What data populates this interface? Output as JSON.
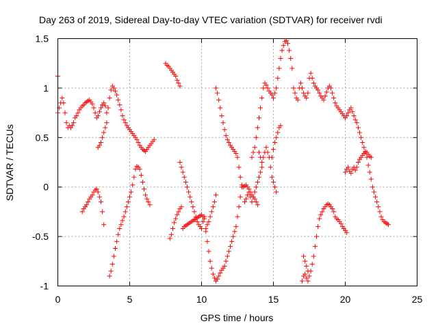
{
  "chart_data": {
    "type": "scatter",
    "title": "Day 263 of 2019, Sidereal Day-to-day VTEC variation (SDTVAR) for receiver rvdi",
    "xlabel": "GPS time / hours",
    "ylabel": "SDTVAR / TECUs",
    "xlim": [
      0,
      25
    ],
    "ylim": [
      -1,
      1.5
    ],
    "x_ticks": [
      0,
      5,
      10,
      15,
      20,
      25
    ],
    "x_tick_labels": [
      "0",
      "5",
      "10",
      "15",
      "20",
      "25"
    ],
    "y_ticks": [
      -1,
      -0.5,
      0,
      0.5,
      1,
      1.5
    ],
    "y_tick_labels": [
      "-1",
      "-0.5",
      "0",
      "0.5",
      "1",
      "1.5"
    ],
    "grid": true,
    "marker": "+",
    "color": "#ff0000",
    "series": [
      {
        "name": "s1",
        "x": [
          0.0,
          0.1,
          0.2,
          0.3,
          0.4,
          0.5,
          0.6,
          0.7,
          0.8,
          0.9,
          1.0,
          1.1,
          1.2,
          1.3,
          1.4,
          1.5,
          1.6,
          1.7,
          1.8,
          1.9,
          2.0,
          2.1,
          2.2,
          2.3,
          2.4,
          2.5,
          2.6,
          2.7,
          2.8,
          2.9,
          3.0,
          3.1,
          3.2,
          3.3,
          3.4,
          3.5,
          3.6,
          3.7,
          3.8,
          3.9,
          4.0,
          4.1,
          4.2,
          4.3,
          4.4,
          4.5,
          4.6,
          4.7,
          4.8,
          4.9,
          5.0,
          5.1,
          5.2,
          5.3,
          5.4,
          5.5,
          5.6,
          5.7,
          5.8,
          5.9,
          6.0,
          6.1,
          6.2,
          6.3,
          6.4,
          6.5,
          6.6,
          6.7
        ],
        "y": [
          0.75,
          0.8,
          0.85,
          0.9,
          0.85,
          0.75,
          0.65,
          0.6,
          0.62,
          0.6,
          0.62,
          0.65,
          0.7,
          0.72,
          0.75,
          0.78,
          0.8,
          0.82,
          0.83,
          0.85,
          0.86,
          0.87,
          0.88,
          0.86,
          0.84,
          0.8,
          0.75,
          0.7,
          0.72,
          0.76,
          0.8,
          0.83,
          0.85,
          0.82,
          0.75,
          0.8,
          0.9,
          0.98,
          1.02,
          1.0,
          0.97,
          0.93,
          0.88,
          0.83,
          0.78,
          0.72,
          0.68,
          0.65,
          0.62,
          0.6,
          0.58,
          0.56,
          0.54,
          0.52,
          0.5,
          0.48,
          0.45,
          0.42,
          0.4,
          0.38,
          0.37,
          0.36,
          0.38,
          0.4,
          0.42,
          0.44,
          0.46,
          0.48
        ]
      },
      {
        "name": "s2",
        "x": [
          2.8,
          2.9,
          3.0,
          3.1,
          3.2,
          3.3,
          3.4
        ],
        "y": [
          0.4,
          0.42,
          0.45,
          0.5,
          0.55,
          0.6,
          0.65
        ]
      },
      {
        "name": "s3",
        "x": [
          1.7,
          1.8,
          1.9,
          2.0,
          2.1,
          2.2,
          2.3,
          2.4,
          2.5,
          2.6,
          2.7,
          2.8,
          2.9,
          3.0,
          3.1,
          3.2
        ],
        "y": [
          -0.25,
          -0.22,
          -0.2,
          -0.18,
          -0.15,
          -0.12,
          -0.1,
          -0.08,
          -0.05,
          -0.03,
          -0.02,
          -0.05,
          -0.1,
          -0.15,
          -0.25,
          -0.38
        ]
      },
      {
        "name": "s4",
        "x": [
          3.6,
          3.7,
          3.8,
          3.9,
          4.0,
          4.1,
          4.2,
          4.3,
          4.4,
          4.5,
          4.6,
          4.7,
          4.8,
          4.9,
          5.0,
          5.1,
          5.2,
          5.3,
          5.4,
          5.5,
          5.6,
          5.7,
          5.8,
          5.9,
          6.0,
          6.1,
          6.2,
          6.3,
          6.4
        ],
        "y": [
          -0.9,
          -0.85,
          -0.78,
          -0.7,
          -0.62,
          -0.55,
          -0.48,
          -0.42,
          -0.38,
          -0.34,
          -0.3,
          -0.25,
          -0.2,
          -0.15,
          -0.1,
          -0.05,
          0.02,
          0.1,
          0.18,
          0.21,
          0.2,
          0.18,
          0.12,
          0.05,
          -0.02,
          -0.08,
          -0.12,
          -0.15,
          -0.18
        ]
      },
      {
        "name": "s5",
        "x": [
          7.5,
          7.6,
          7.7,
          7.8,
          7.9,
          8.0,
          8.1,
          8.2,
          8.3,
          8.4,
          8.5
        ],
        "y": [
          1.25,
          1.23,
          1.22,
          1.2,
          1.18,
          1.16,
          1.14,
          1.12,
          1.08,
          1.05,
          1.02
        ]
      },
      {
        "name": "s6",
        "x": [
          7.8,
          7.9,
          8.0,
          8.1,
          8.2,
          8.3,
          8.4,
          8.5,
          8.6
        ],
        "y": [
          -0.52,
          -0.48,
          -0.42,
          -0.36,
          -0.32,
          -0.28,
          -0.25,
          -0.22,
          -0.2
        ]
      },
      {
        "name": "s7",
        "x": [
          8.5,
          8.6,
          8.7,
          8.8,
          8.9,
          9.0,
          9.1,
          9.2,
          9.3,
          9.4,
          9.5,
          9.6,
          9.7,
          9.8,
          9.9,
          10.0,
          10.1,
          10.2,
          10.3,
          10.4,
          10.5,
          10.6,
          10.7,
          10.8,
          10.9,
          11.0,
          11.1,
          11.2,
          11.3,
          11.4,
          11.5,
          11.6,
          11.7,
          11.8,
          11.9,
          12.0,
          12.1,
          12.2,
          12.3,
          12.4,
          12.5,
          12.6,
          12.7,
          12.8
        ],
        "y": [
          0.25,
          0.2,
          0.15,
          0.1,
          0.05,
          0.0,
          -0.05,
          -0.1,
          -0.15,
          -0.2,
          -0.25,
          -0.3,
          -0.35,
          -0.38,
          -0.4,
          -0.42,
          -0.35,
          -0.3,
          -0.45,
          -0.55,
          -0.65,
          -0.75,
          -0.82,
          -0.88,
          -0.92,
          -0.95,
          -0.93,
          -0.9,
          -0.87,
          -0.84,
          -0.82,
          -0.8,
          -0.75,
          -0.7,
          -0.65,
          -0.6,
          -0.55,
          -0.5,
          -0.45,
          -0.4,
          -0.3,
          -0.2,
          -0.1,
          0.0
        ]
      },
      {
        "name": "s8",
        "x": [
          8.7,
          8.8,
          8.9,
          9.0,
          9.1,
          9.2,
          9.3,
          9.4,
          9.5,
          9.6,
          9.7,
          9.8,
          9.9,
          10.0,
          10.1,
          10.2
        ],
        "y": [
          -0.42,
          -0.4,
          -0.39,
          -0.38,
          -0.37,
          -0.36,
          -0.35,
          -0.34,
          -0.33,
          -0.32,
          -0.31,
          -0.3,
          -0.29,
          -0.28,
          -0.3,
          -0.32
        ]
      },
      {
        "name": "s9",
        "x": [
          10.3,
          10.4,
          10.5,
          10.6,
          10.7,
          10.8,
          10.9,
          11.0
        ],
        "y": [
          -0.42,
          -0.38,
          -0.35,
          -0.3,
          -0.25,
          -0.2,
          -0.15,
          -0.08
        ]
      },
      {
        "name": "s10",
        "x": [
          11.0,
          11.1,
          11.2,
          11.3,
          11.4,
          11.5,
          11.6,
          11.7,
          11.8,
          11.9,
          12.0,
          12.1,
          12.2,
          12.3,
          12.4,
          12.5,
          12.6,
          12.7,
          12.8,
          12.9,
          13.0,
          13.1,
          13.2,
          13.3,
          13.4,
          13.5,
          13.6,
          13.7,
          13.8,
          13.9
        ],
        "y": [
          1.0,
          0.95,
          0.88,
          0.8,
          0.72,
          0.65,
          0.58,
          0.52,
          0.48,
          0.45,
          0.42,
          0.4,
          0.38,
          0.36,
          0.34,
          0.3,
          0.2,
          0.1,
          0.02,
          0.0,
          0.01,
          0.02,
          0.0,
          -0.02,
          -0.05,
          -0.08,
          -0.1,
          -0.12,
          -0.15,
          -0.18
        ]
      },
      {
        "name": "s11",
        "x": [
          13.5,
          13.6,
          13.7,
          13.8,
          13.9,
          14.0,
          14.1,
          14.2,
          14.3,
          14.4,
          14.5,
          14.6,
          14.7,
          14.8,
          14.9,
          15.0,
          15.1,
          15.2,
          15.3,
          15.4,
          15.5,
          15.6,
          15.7,
          15.8,
          15.9,
          16.0,
          16.1,
          16.2,
          16.3
        ],
        "y": [
          0.3,
          0.35,
          0.4,
          0.5,
          0.6,
          0.7,
          0.8,
          0.9,
          1.0,
          1.05,
          1.03,
          1.0,
          0.97,
          0.95,
          0.93,
          0.9,
          0.95,
          1.0,
          1.1,
          1.2,
          1.3,
          1.38,
          1.43,
          1.47,
          1.48,
          1.45,
          1.38,
          1.3,
          1.2
        ]
      },
      {
        "name": "s12",
        "x": [
          14.0,
          14.1,
          14.2,
          14.3,
          14.4,
          14.5,
          14.6,
          14.7,
          14.8,
          14.9,
          15.0,
          15.1,
          15.2
        ],
        "y": [
          0.35,
          0.3,
          0.25,
          0.3,
          0.35,
          0.4,
          0.35,
          0.3,
          0.2,
          0.1,
          0.05,
          0.0,
          -0.05
        ]
      },
      {
        "name": "s13",
        "x": [
          14.9,
          15.0,
          15.1,
          15.2,
          15.3,
          15.4,
          15.5
        ],
        "y": [
          0.3,
          0.38,
          0.45,
          0.5,
          0.55,
          0.6,
          0.62
        ]
      },
      {
        "name": "s14",
        "x": [
          13.0,
          13.1,
          13.2,
          13.3,
          13.4,
          13.5,
          13.6,
          13.7,
          13.8,
          13.9,
          14.0,
          14.1,
          14.2
        ],
        "y": [
          -0.15,
          -0.12,
          -0.08,
          -0.05,
          -0.1,
          -0.15,
          -0.1,
          -0.05,
          0.0,
          0.05,
          0.1,
          0.15,
          0.2
        ]
      },
      {
        "name": "s15",
        "x": [
          16.4,
          16.5,
          16.6,
          16.7,
          16.8,
          16.9,
          17.0,
          17.1,
          17.2,
          17.3,
          17.4,
          17.5,
          17.6,
          17.7,
          17.8,
          17.9,
          18.0,
          18.1,
          18.2,
          18.3,
          18.4,
          18.5,
          18.6,
          18.7,
          18.8,
          18.9,
          19.0,
          19.1,
          19.2,
          19.3,
          19.4,
          19.5,
          19.6,
          19.7,
          19.8,
          19.9,
          20.0,
          20.1,
          20.2,
          20.3,
          20.4,
          20.5,
          20.6,
          20.7,
          20.8,
          20.9,
          21.0,
          21.1,
          21.2,
          21.3,
          21.4,
          21.5,
          21.6,
          21.7,
          21.8,
          21.9,
          22.0,
          22.1,
          22.2,
          22.3,
          22.4,
          22.5,
          22.6,
          22.7,
          22.8,
          22.9,
          23.0
        ],
        "y": [
          1.0,
          0.95,
          0.9,
          0.88,
          1.0,
          1.05,
          1.0,
          0.95,
          0.92,
          0.9,
          0.95,
          1.1,
          1.15,
          1.1,
          1.05,
          1.02,
          1.0,
          0.98,
          0.95,
          0.92,
          0.9,
          0.88,
          0.92,
          0.96,
          1.0,
          1.02,
          1.0,
          0.95,
          0.9,
          0.85,
          0.82,
          0.8,
          0.78,
          0.76,
          0.74,
          0.72,
          0.7,
          0.72,
          0.75,
          0.78,
          0.8,
          0.76,
          0.72,
          0.68,
          0.65,
          0.6,
          0.55,
          0.5,
          0.45,
          0.4,
          0.35,
          0.3,
          0.22,
          0.15,
          0.08,
          0.0,
          -0.05,
          -0.1,
          -0.15,
          -0.2,
          -0.25,
          -0.3,
          -0.33,
          -0.35,
          -0.36,
          -0.37,
          -0.38
        ]
      },
      {
        "name": "s16",
        "x": [
          17.0,
          17.1,
          17.2,
          17.3,
          17.4,
          17.5,
          17.6,
          17.7,
          17.8,
          17.9,
          18.0,
          18.1,
          18.2,
          18.3,
          18.4,
          18.5,
          18.6,
          18.7,
          18.8,
          18.9,
          19.0,
          19.1,
          19.2,
          19.3,
          19.4,
          19.5,
          19.6,
          19.7,
          19.8,
          19.9,
          20.0,
          20.1
        ],
        "y": [
          -0.95,
          -0.9,
          -0.88,
          -0.92,
          -0.95,
          -0.9,
          -0.85,
          -0.78,
          -0.7,
          -0.6,
          -0.5,
          -0.4,
          -0.32,
          -0.28,
          -0.25,
          -0.22,
          -0.2,
          -0.18,
          -0.17,
          -0.18,
          -0.2,
          -0.22,
          -0.25,
          -0.3,
          -0.32,
          -0.33,
          -0.35,
          -0.37,
          -0.4,
          -0.42,
          -0.44,
          -0.46
        ]
      },
      {
        "name": "s17",
        "x": [
          20.0,
          20.1,
          20.2,
          20.3,
          20.4,
          20.5,
          20.6,
          20.7,
          20.8,
          20.9,
          21.0,
          21.1,
          21.2,
          21.3,
          21.4,
          21.5,
          21.6,
          21.7,
          21.8
        ],
        "y": [
          0.15,
          0.18,
          0.2,
          0.16,
          0.14,
          0.18,
          0.2,
          0.17,
          0.2,
          0.25,
          0.28,
          0.3,
          0.32,
          0.34,
          0.36,
          0.35,
          0.33,
          0.31,
          0.3
        ]
      },
      {
        "name": "s18",
        "x": [
          17.1,
          17.2,
          17.3,
          17.4,
          17.5
        ],
        "y": [
          -0.7,
          -0.75,
          -0.8,
          -0.85,
          -0.9
        ]
      },
      {
        "name": "s19",
        "x": [
          0.0
        ],
        "y": [
          1.12
        ]
      }
    ]
  }
}
